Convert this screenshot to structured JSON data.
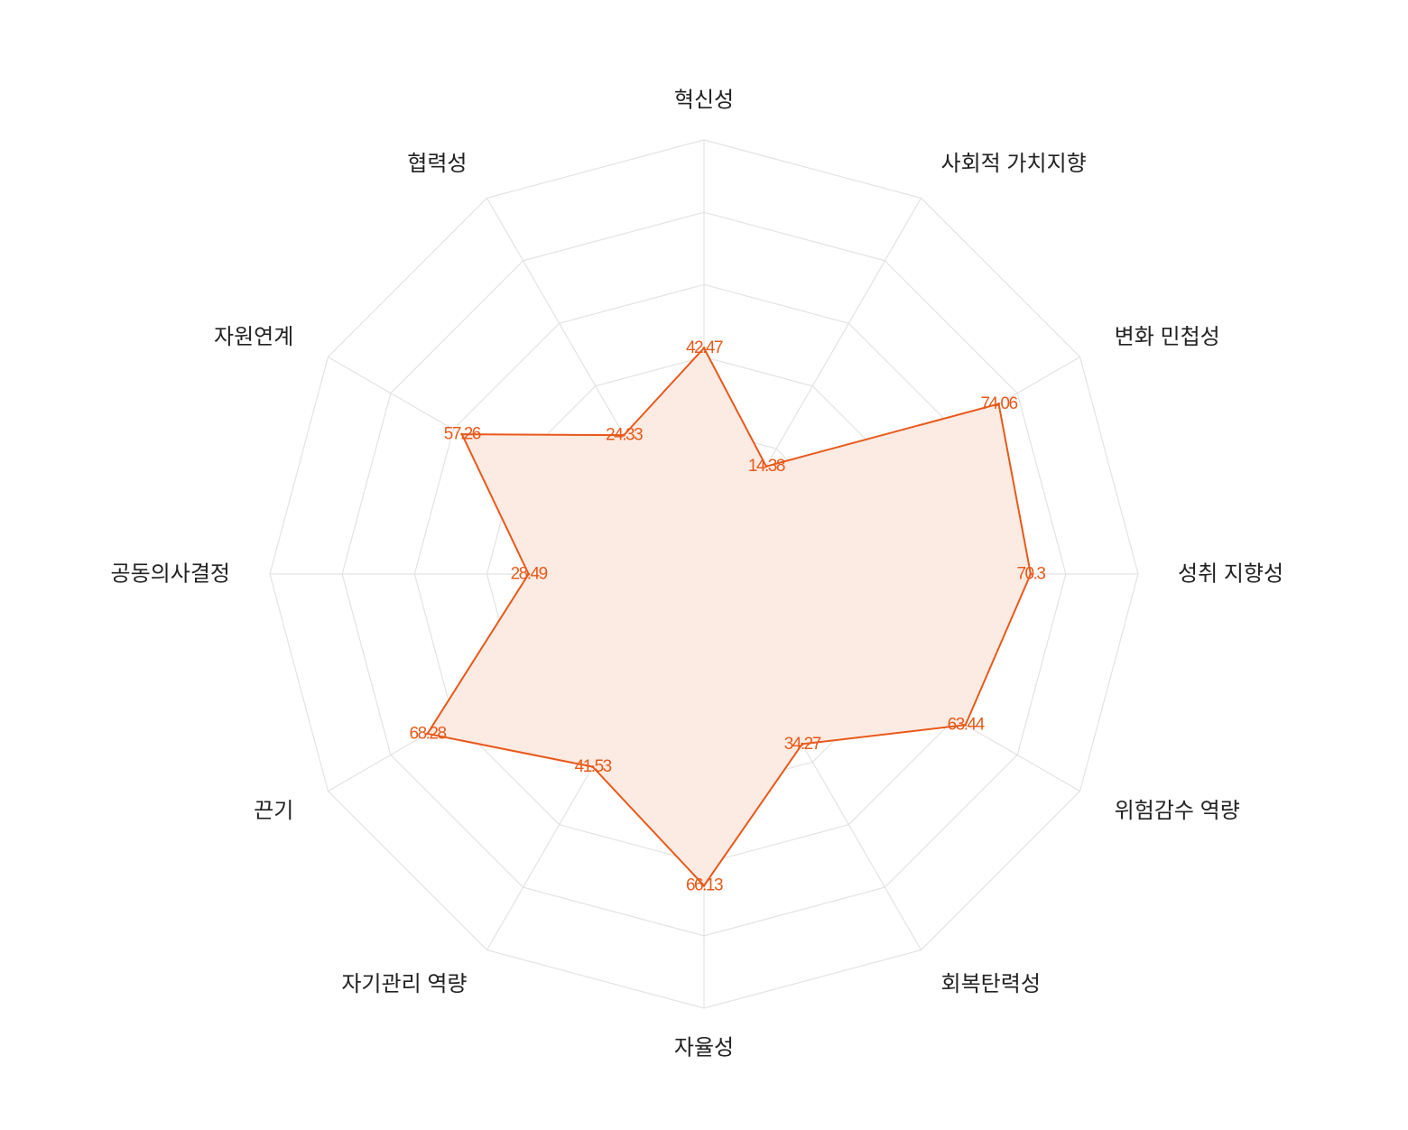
{
  "chart_data": {
    "type": "radar",
    "title": "",
    "axes": [
      "혁신성",
      "사회적 가치지향",
      "변화 민첩성",
      "성취 지향성",
      "위험감수 역량",
      "회복탄력성",
      "자율성",
      "자기관리 역량",
      "끈기",
      "공동의사결정",
      "자원연계",
      "협력성"
    ],
    "series": [
      {
        "values": [
          42.47,
          14.38,
          74.06,
          70.3,
          63.44,
          34.27,
          66.13,
          41.53,
          68.28,
          28.49,
          57.26,
          24.33
        ],
        "labels": [
          "42.47",
          "14.38",
          "74.06",
          "70.3",
          "63.44",
          "34.27",
          "66.13",
          "41.53",
          "68.28",
          "28.49",
          "57.26",
          "24.33"
        ]
      }
    ],
    "rmin": -20,
    "rmax": 100,
    "grid_levels": [
      -20,
      0,
      20,
      40,
      60,
      80,
      100
    ],
    "grid": true,
    "legend": "none",
    "colors": {
      "line": "#e8591a",
      "fill": "#fcebe3",
      "label": "#e8591a",
      "grid": "#e3e3e3",
      "axis_text": "#222222"
    }
  }
}
